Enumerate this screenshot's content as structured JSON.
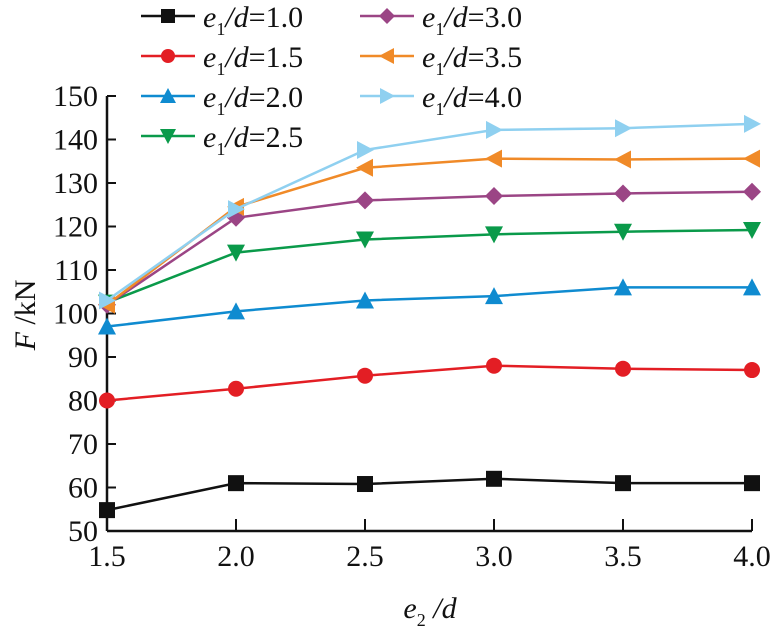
{
  "chart_data": {
    "type": "line",
    "title": "",
    "xlabel": {
      "main": "e",
      "sub": "2",
      "rest": " /d"
    },
    "ylabel": {
      "italic": "F",
      "rest": " /kN"
    },
    "x": [
      1.5,
      2.0,
      2.5,
      3.0,
      3.5,
      4.0
    ],
    "xlim": [
      1.5,
      4.0
    ],
    "ylim": [
      50,
      150
    ],
    "x_ticks": [
      "1.5",
      "2.0",
      "2.5",
      "3.0",
      "3.5",
      "4.0"
    ],
    "y_ticks": [
      "50",
      "60",
      "70",
      "80",
      "90",
      "100",
      "110",
      "120",
      "130",
      "140",
      "150"
    ],
    "grid": false,
    "legend_position": "top-left",
    "series": [
      {
        "name": "e1/d=1.0",
        "label_value": "1.0",
        "color": "#111111",
        "marker": "square",
        "values": [
          54.8,
          61.0,
          60.8,
          62.0,
          61.0,
          61.0
        ]
      },
      {
        "name": "e1/d=1.5",
        "label_value": "1.5",
        "color": "#e31e24",
        "marker": "circle",
        "values": [
          80.0,
          82.7,
          85.7,
          88.0,
          87.3,
          87.0
        ]
      },
      {
        "name": "e1/d=2.0",
        "label_value": "2.0",
        "color": "#0f8bd0",
        "marker": "triangle-up",
        "values": [
          97.0,
          100.5,
          103.0,
          104.0,
          106.0,
          106.0
        ]
      },
      {
        "name": "e1/d=2.5",
        "label_value": "2.5",
        "color": "#0a9a4a",
        "marker": "triangle-down",
        "values": [
          102.5,
          114.0,
          117.0,
          118.2,
          118.8,
          119.2
        ]
      },
      {
        "name": "e1/d=3.0",
        "label_value": "3.0",
        "color": "#9b4585",
        "marker": "diamond",
        "values": [
          102.0,
          122.0,
          126.0,
          127.0,
          127.6,
          128.0
        ]
      },
      {
        "name": "e1/d=3.5",
        "label_value": "3.5",
        "color": "#f08a28",
        "marker": "triangle-left",
        "values": [
          102.0,
          124.5,
          133.5,
          135.6,
          135.4,
          135.6
        ]
      },
      {
        "name": "e1/d=4.0",
        "label_value": "4.0",
        "color": "#8fd0f0",
        "marker": "triangle-right",
        "values": [
          103.0,
          124.0,
          137.6,
          142.2,
          142.6,
          143.6
        ]
      }
    ]
  }
}
